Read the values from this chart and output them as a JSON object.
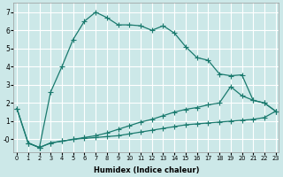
{
  "xlabel": "Humidex (Indice chaleur)",
  "bg_color": "#cce8e8",
  "grid_color": "#ffffff",
  "line_color": "#1a7a6e",
  "line1_x": [
    0,
    1,
    2,
    3,
    4,
    5,
    6,
    7,
    8,
    9,
    10,
    11,
    12,
    13,
    14,
    15,
    16,
    17,
    18,
    19,
    20,
    21,
    22,
    23
  ],
  "line1_y": [
    1.7,
    -0.2,
    -0.45,
    -0.2,
    -0.1,
    0.0,
    0.05,
    0.1,
    0.15,
    0.2,
    0.3,
    0.4,
    0.5,
    0.6,
    0.7,
    0.8,
    0.85,
    0.9,
    0.95,
    1.0,
    1.05,
    1.1,
    1.2,
    1.55
  ],
  "line2_x": [
    0,
    1,
    2,
    3,
    4,
    5,
    6,
    7,
    8,
    9,
    10,
    11,
    12,
    13,
    14,
    15,
    16,
    17,
    18,
    19,
    20,
    21,
    22,
    23
  ],
  "line2_y": [
    1.7,
    -0.2,
    -0.45,
    -0.2,
    -0.1,
    0.0,
    0.1,
    0.2,
    0.35,
    0.55,
    0.75,
    0.95,
    1.1,
    1.3,
    1.5,
    1.65,
    1.75,
    1.9,
    2.0,
    2.9,
    2.4,
    2.15,
    2.0,
    1.55
  ],
  "line3_x": [
    1,
    2,
    3,
    4,
    5,
    6,
    7,
    8,
    9,
    10,
    11,
    12,
    13,
    14,
    15,
    16,
    17,
    18,
    19,
    20,
    21,
    22,
    23
  ],
  "line3_y": [
    -0.2,
    -0.45,
    2.6,
    4.0,
    5.5,
    6.5,
    7.0,
    6.7,
    6.3,
    6.3,
    6.25,
    6.0,
    6.25,
    5.85,
    5.1,
    4.5,
    4.35,
    3.6,
    3.5,
    3.55,
    2.15,
    2.0,
    1.55
  ],
  "xlim": [
    0,
    23
  ],
  "ylim": [
    -0.7,
    7.5
  ],
  "yticks": [
    0,
    1,
    2,
    3,
    4,
    5,
    6,
    7
  ],
  "ytick_labels": [
    "-0",
    "1",
    "2",
    "3",
    "4",
    "5",
    "6",
    "7"
  ],
  "xticks": [
    0,
    1,
    2,
    3,
    4,
    5,
    6,
    7,
    8,
    9,
    10,
    11,
    12,
    13,
    14,
    15,
    16,
    17,
    18,
    19,
    20,
    21,
    22,
    23
  ]
}
